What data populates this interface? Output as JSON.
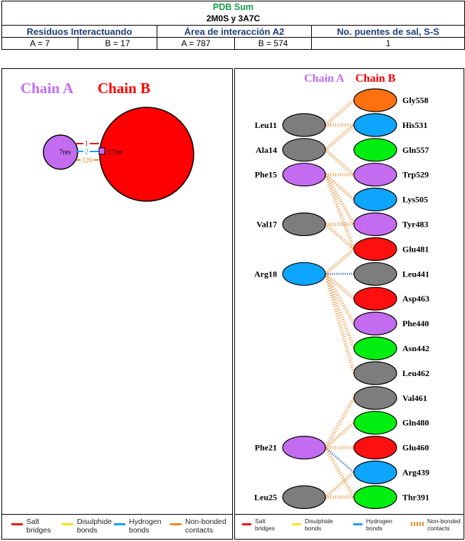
{
  "summary_table": {
    "title": "PDB Sum",
    "subtitle": "2M0S y 3A7C",
    "headers": [
      "Residuos Interactuando",
      "Área de interacción A2",
      "No. puentes de sal, S-S"
    ],
    "cells": [
      "A = 7",
      "B = 17",
      "A = 787",
      "B = 574",
      "1"
    ]
  },
  "colors": {
    "chain_a": "#c36cf0",
    "chain_b": "#ff0000",
    "title_green": "#11a04a",
    "header_blue": "#1f3f7a",
    "salt_bridge": "#e8141b",
    "disulphide": "#f5e31a",
    "hydrogen": "#1aa0f0",
    "non_bonded": "#ef8a2e",
    "residue": {
      "grey": "#7d7d7d",
      "orange": "#ff7010",
      "blue": "#0ea5ff",
      "green": "#00ee10",
      "violet": "#c36cf0",
      "red": "#ff1010"
    }
  },
  "left_panel": {
    "chain_a_label": "Chain A",
    "chain_b_label": "Chain B",
    "chain_a_residues": "7res",
    "chain_b_residues": "17res",
    "salt_bridges_count": "1",
    "hydrogen_bonds_count": "2",
    "non_bonded_count": "126"
  },
  "right_panel": {
    "chain_a_label": "Chain A",
    "chain_b_label": "Chain B",
    "chain_a": [
      {
        "name": "Leu11",
        "color": "grey"
      },
      {
        "name": "Ala14",
        "color": "grey"
      },
      {
        "name": "Phe15",
        "color": "violet"
      },
      {
        "name": "Val17",
        "color": "grey"
      },
      {
        "name": "Arg18",
        "color": "blue"
      },
      {
        "name": "Phe21",
        "color": "violet"
      },
      {
        "name": "Leu25",
        "color": "grey"
      }
    ],
    "chain_b": [
      {
        "name": "Gly558",
        "color": "orange"
      },
      {
        "name": "His531",
        "color": "blue"
      },
      {
        "name": "Gln557",
        "color": "green"
      },
      {
        "name": "Trp529",
        "color": "violet"
      },
      {
        "name": "Lys505",
        "color": "blue"
      },
      {
        "name": "Tyr483",
        "color": "violet"
      },
      {
        "name": "Glu481",
        "color": "red"
      },
      {
        "name": "Leu441",
        "color": "grey"
      },
      {
        "name": "Asp463",
        "color": "red"
      },
      {
        "name": "Phe440",
        "color": "violet"
      },
      {
        "name": "Asn442",
        "color": "green"
      },
      {
        "name": "Leu462",
        "color": "grey"
      },
      {
        "name": "Val461",
        "color": "grey"
      },
      {
        "name": "Gln480",
        "color": "green"
      },
      {
        "name": "Glu460",
        "color": "red"
      },
      {
        "name": "Arg439",
        "color": "blue"
      },
      {
        "name": "Thr391",
        "color": "green"
      }
    ],
    "links": [
      {
        "a": 0,
        "b": 0,
        "type": "non_bonded"
      },
      {
        "a": 0,
        "b": 1,
        "type": "non_bonded"
      },
      {
        "a": 1,
        "b": 1,
        "type": "non_bonded"
      },
      {
        "a": 1,
        "b": 3,
        "type": "non_bonded"
      },
      {
        "a": 2,
        "b": 3,
        "type": "non_bonded"
      },
      {
        "a": 2,
        "b": 4,
        "type": "non_bonded"
      },
      {
        "a": 2,
        "b": 5,
        "type": "non_bonded"
      },
      {
        "a": 2,
        "b": 6,
        "type": "non_bonded"
      },
      {
        "a": 3,
        "b": 6,
        "type": "non_bonded"
      },
      {
        "a": 3,
        "b": 5,
        "type": "non_bonded"
      },
      {
        "a": 4,
        "b": 6,
        "type": "non_bonded"
      },
      {
        "a": 4,
        "b": 7,
        "type": "hydrogen"
      },
      {
        "a": 4,
        "b": 8,
        "type": "non_bonded"
      },
      {
        "a": 4,
        "b": 9,
        "type": "non_bonded"
      },
      {
        "a": 4,
        "b": 10,
        "type": "non_bonded"
      },
      {
        "a": 4,
        "b": 11,
        "type": "non_bonded"
      },
      {
        "a": 5,
        "b": 12,
        "type": "non_bonded"
      },
      {
        "a": 5,
        "b": 13,
        "type": "non_bonded"
      },
      {
        "a": 5,
        "b": 14,
        "type": "non_bonded"
      },
      {
        "a": 5,
        "b": 15,
        "type": "hydrogen"
      },
      {
        "a": 5,
        "b": 16,
        "type": "non_bonded"
      },
      {
        "a": 6,
        "b": 15,
        "type": "non_bonded"
      },
      {
        "a": 6,
        "b": 16,
        "type": "non_bonded"
      }
    ]
  },
  "legend": [
    {
      "label": "Salt\nbridges",
      "key": "salt_bridge"
    },
    {
      "label": "Disulphide\nbonds",
      "key": "disulphide"
    },
    {
      "label": "Hydrogen\nbonds",
      "key": "hydrogen"
    },
    {
      "label": "Non-bonded\ncontacts",
      "key": "non_bonded"
    }
  ]
}
